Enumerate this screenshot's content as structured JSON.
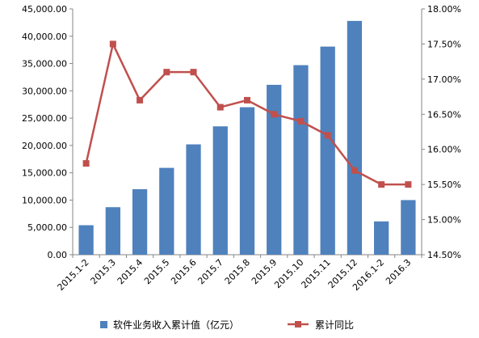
{
  "chart_data": {
    "type": "bar",
    "categories": [
      "2015.1-2",
      "2015.3",
      "2015.4",
      "2015.5",
      "2015.6",
      "2015.7",
      "2015.8",
      "2015.9",
      "2015.10",
      "2015.11",
      "2015.12",
      "2016.1-2",
      "2016.3"
    ],
    "series": [
      {
        "name": "软件业务收入累计值（亿元）",
        "type": "bar",
        "axis": "left",
        "color": "#4f81bd",
        "values": [
          5400,
          8700,
          12000,
          15900,
          20200,
          23500,
          27000,
          31100,
          34700,
          38100,
          42800,
          6100,
          10000
        ]
      },
      {
        "name": "累计同比",
        "type": "line",
        "axis": "right",
        "color": "#c0504d",
        "marker": "square",
        "values": [
          15.8,
          17.5,
          16.7,
          17.1,
          17.1,
          16.6,
          16.7,
          16.5,
          16.4,
          16.2,
          15.7,
          15.5,
          15.5
        ]
      }
    ],
    "y_left": {
      "min": 0,
      "max": 45000,
      "step": 5000,
      "tick_labels": [
        "0.00",
        "5,000.00",
        "10,000.00",
        "15,000.00",
        "20,000.00",
        "25,000.00",
        "30,000.00",
        "35,000.00",
        "40,000.00",
        "45,000.00"
      ]
    },
    "y_right": {
      "min": 14.5,
      "max": 18.0,
      "step": 0.5,
      "tick_labels": [
        "14.50%",
        "15.00%",
        "15.50%",
        "16.00%",
        "16.50%",
        "17.00%",
        "17.50%",
        "18.00%"
      ]
    },
    "grid": false,
    "legend_position": "bottom"
  }
}
